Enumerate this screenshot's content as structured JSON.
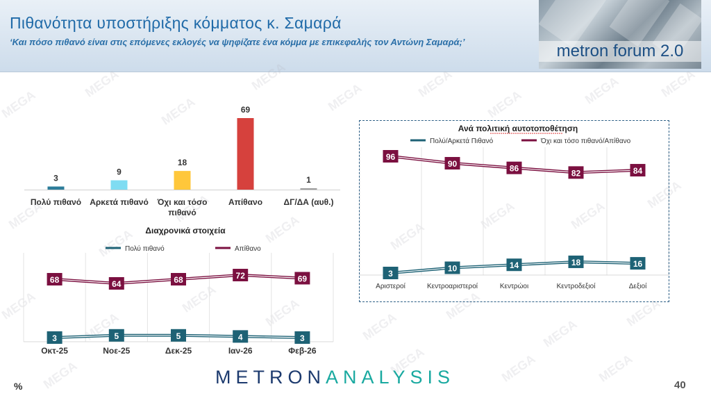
{
  "header": {
    "title": "Πιθανότητα υποστήριξης κόμματος κ. Σαμαρά",
    "subtitle": "‘Και πόσο πιθανό είναι στις επόμενες εκλογές να ψηφίζατε ένα κόμμα με επικεφαλής τον Αντώνη Σαμαρά;’",
    "logo_text": "metron forum 2.0"
  },
  "watermark_text": "MEGA",
  "footer": {
    "brand_left": "METRON",
    "brand_right": "ANALYSIS",
    "unit": "%",
    "page": "40"
  },
  "colors": {
    "teal": "#1e6275",
    "maroon": "#7b1040",
    "bar_teal": "#2d7d9a",
    "bar_lightblue": "#7fdcf2",
    "bar_yellow": "#ffc73b",
    "bar_red": "#d6413d",
    "bar_gray": "#9e9e9e"
  },
  "chart_data": [
    {
      "type": "bar",
      "title": "",
      "categories": [
        "Πολύ πιθανό",
        "Αρκετά πιθανό",
        "Όχι και τόσο πιθανό",
        "Απίθανο",
        "ΔΓ/ΔΑ (αυθ.)"
      ],
      "values": [
        3,
        9,
        18,
        69,
        1
      ],
      "ylim": [
        0,
        69
      ]
    },
    {
      "type": "line",
      "title": "Διαχρονικά στοιχεία",
      "categories": [
        "Οκτ-25",
        "Νοε-25",
        "Δεκ-25",
        "Ιαν-26",
        "Φεβ-26"
      ],
      "series": [
        {
          "name": "Πολύ πιθανό",
          "values": [
            3,
            5,
            5,
            4,
            3
          ]
        },
        {
          "name": "Απίθανο",
          "values": [
            68,
            64,
            68,
            72,
            69
          ]
        }
      ],
      "legend": "top"
    },
    {
      "type": "line",
      "title": "Ανά πολιτική αυτοτοποθέτηση",
      "categories": [
        "Αριστεροί",
        "Κεντροαριστεροί",
        "Κεντρώοι",
        "Κεντροδεξιοί",
        "Δεξιοί"
      ],
      "series": [
        {
          "name": "Πολύ/Αρκετά Πιθανό",
          "values": [
            3,
            10,
            14,
            18,
            16
          ]
        },
        {
          "name": "Όχι και τόσο πιθανό/Απίθανο",
          "values": [
            96,
            90,
            86,
            82,
            84
          ]
        }
      ],
      "legend": "top"
    }
  ]
}
